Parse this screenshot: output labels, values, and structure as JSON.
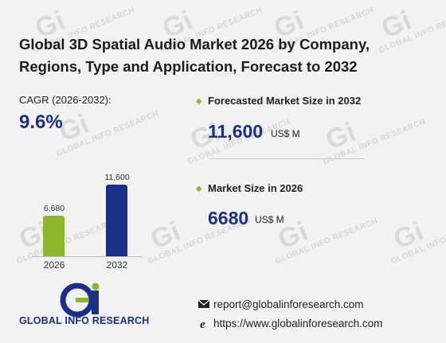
{
  "title": "Global 3D Spatial Audio Market 2026 by Company, Regions, Type and Application, Forecast to 2032",
  "cagr": {
    "label": "CAGR (2026-2032):",
    "value": "9.6%"
  },
  "chart_data": {
    "type": "bar",
    "categories": [
      "2026",
      "2032"
    ],
    "values": [
      6680,
      11600
    ],
    "value_labels": [
      "6,680",
      "11,600"
    ],
    "colors": [
      "#8fb52b",
      "#1a2f8a"
    ]
  },
  "metrics": {
    "forecast": {
      "label": "Forecasted Market Size in 2032",
      "value": "11,600",
      "unit": "US$ M"
    },
    "current": {
      "label": "Market Size in 2026",
      "value": "6680",
      "unit": "US$ M"
    }
  },
  "brand": {
    "name": "GLOBAL INFO RESEARCH",
    "watermark": "GLOBAL INFO RESEARCH"
  },
  "contact": {
    "email": "report@globalinforesearch.com",
    "website": "https://www.globalinforesearch.com"
  },
  "colors": {
    "accent_green": "#8fb52b",
    "accent_blue": "#1a2f8a",
    "background": "#f2f2f2"
  },
  "icons": {
    "bullet": "diamond-bullet-icon",
    "email": "envelope-icon",
    "web": "internet-explorer-icon"
  }
}
